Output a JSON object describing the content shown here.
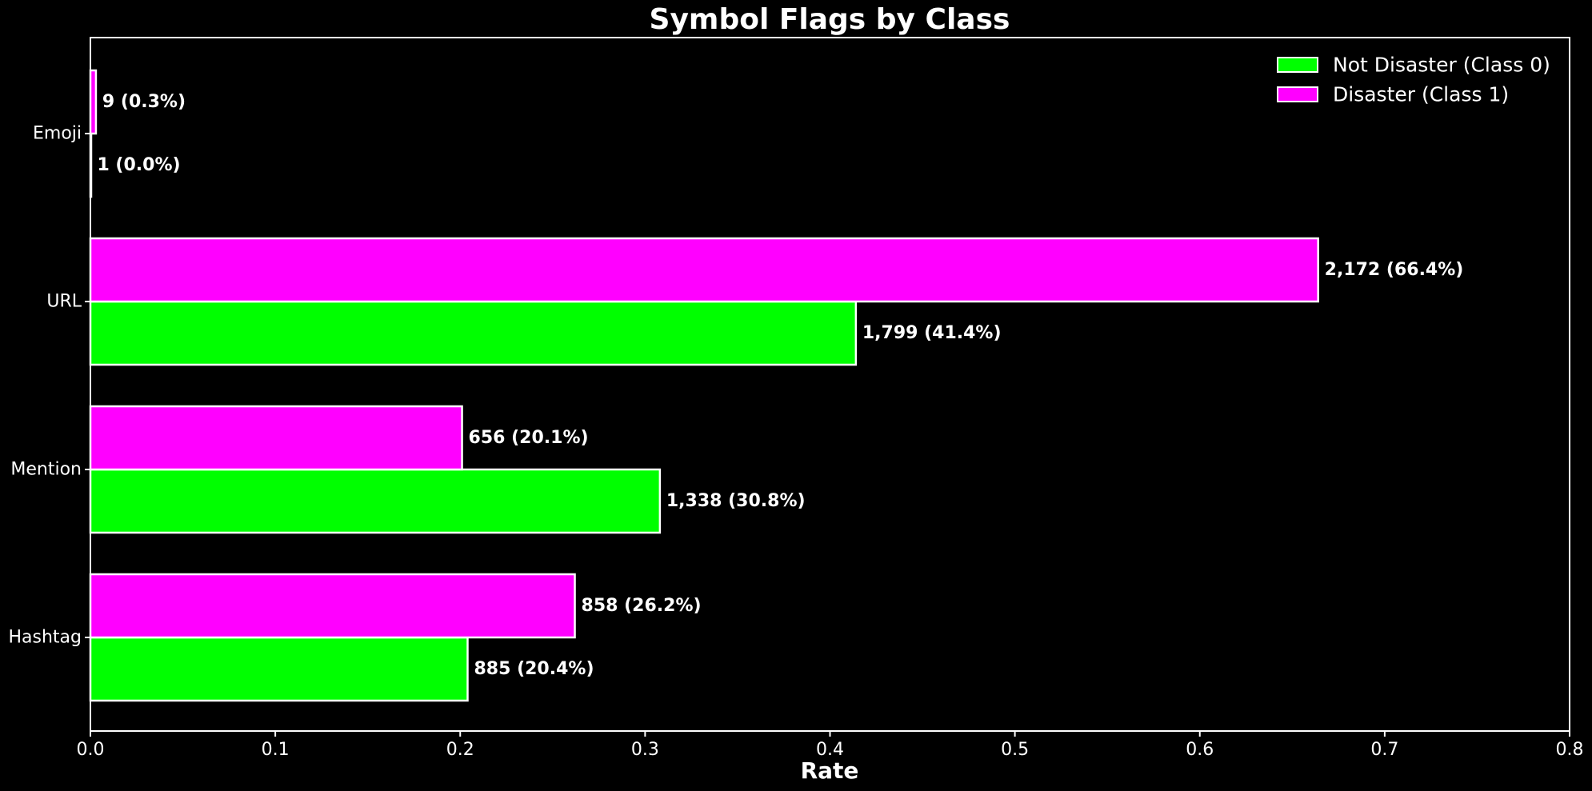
{
  "chart_data": {
    "type": "bar",
    "orientation": "horizontal",
    "title": "Symbol Flags by Class",
    "xlabel": "Rate",
    "ylabel": "",
    "xlim": [
      0,
      0.8
    ],
    "x_ticks": [
      "0.0",
      "0.1",
      "0.2",
      "0.3",
      "0.4",
      "0.5",
      "0.6",
      "0.7",
      "0.8"
    ],
    "categories": [
      "Hashtag",
      "Mention",
      "URL",
      "Emoji"
    ],
    "grid": false,
    "legend_position": "top-right",
    "series": [
      {
        "name": "Not Disaster (Class 0)",
        "color": "#00ff00",
        "values": [
          0.204,
          0.308,
          0.414,
          0.0002
        ],
        "labels": [
          "885 (20.4%)",
          "1,338 (30.8%)",
          "1,799 (41.4%)",
          "1 (0.0%)"
        ]
      },
      {
        "name": "Disaster (Class 1)",
        "color": "#ff00ff",
        "values": [
          0.262,
          0.201,
          0.664,
          0.003
        ],
        "labels": [
          "858 (26.2%)",
          "656 (20.1%)",
          "2,172 (66.4%)",
          "9 (0.3%)"
        ]
      }
    ],
    "colors": {
      "background": "#000000",
      "axis": "#ffffff",
      "bar_edge": "#ffffff",
      "text": "#ffffff"
    }
  }
}
